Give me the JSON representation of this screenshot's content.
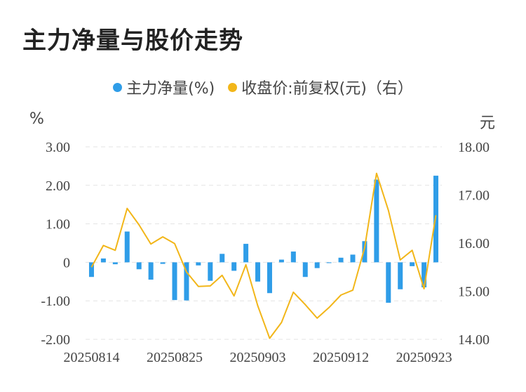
{
  "title": "主力净量与股价走势",
  "legend": {
    "series1": "主力净量(%)",
    "series2": "收盘价:前复权(元)（右）"
  },
  "units": {
    "left": "%",
    "right": "元"
  },
  "colors": {
    "bar": "#2f9de8",
    "line": "#f2b619",
    "grid": "#e3e3e3",
    "text": "#444444"
  },
  "chart_data": {
    "type": "bar",
    "title": "主力净量与股价走势",
    "ylabel": "%",
    "y2label": "元",
    "ylim": [
      -2.0,
      3.0
    ],
    "y2lim": [
      14.0,
      18.0
    ],
    "yticks": [
      "3.00",
      "2.00",
      "1.00",
      "0",
      "-1.00",
      "-2.00"
    ],
    "y2ticks": [
      "18.00",
      "17.00",
      "16.00",
      "15.00",
      "14.00"
    ],
    "xticks": [
      "20250814",
      "20250825",
      "20250903",
      "20250912",
      "20250923"
    ],
    "x": [
      "20250814",
      "20250815",
      "20250818",
      "20250819",
      "20250820",
      "20250821",
      "20250822",
      "20250825",
      "20250826",
      "20250827",
      "20250828",
      "20250829",
      "20250901",
      "20250902",
      "20250903",
      "20250904",
      "20250905",
      "20250908",
      "20250909",
      "20250910",
      "20250911",
      "20250912",
      "20250915",
      "20250916",
      "20250917",
      "20250918",
      "20250919",
      "20250922",
      "20250923",
      "20250924"
    ],
    "series": [
      {
        "name": "主力净量(%)",
        "type": "bar",
        "values": [
          -0.38,
          0.1,
          -0.05,
          0.8,
          -0.18,
          -0.45,
          -0.04,
          -0.98,
          -0.99,
          -0.08,
          -0.48,
          0.22,
          -0.22,
          0.48,
          -0.5,
          -0.8,
          0.07,
          0.28,
          -0.38,
          -0.15,
          -0.02,
          0.12,
          0.2,
          0.55,
          2.15,
          -1.05,
          -0.7,
          -0.1,
          -0.65,
          2.25
        ]
      },
      {
        "name": "收盘价:前复权(元)",
        "type": "line",
        "axis": "right",
        "values": [
          15.5,
          15.95,
          15.85,
          16.72,
          16.38,
          15.98,
          16.13,
          15.99,
          15.4,
          15.1,
          15.11,
          15.33,
          14.9,
          15.55,
          14.7,
          14.02,
          14.35,
          14.98,
          14.72,
          14.44,
          14.66,
          14.92,
          15.02,
          15.9,
          17.45,
          16.68,
          15.65,
          15.85,
          15.05,
          16.58
        ]
      }
    ]
  }
}
